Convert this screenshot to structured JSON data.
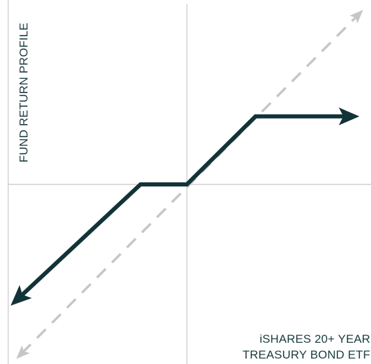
{
  "chart_data": {
    "type": "line",
    "title": "",
    "ylabel": "FUND RETURN PROFILE",
    "xlabel_lines": [
      "iSHARES 20+ YEAR",
      "TREASURY BOND ETF"
    ],
    "grid": false,
    "xlim": [
      -1,
      1
    ],
    "ylim": [
      -1,
      1
    ],
    "series": [
      {
        "color": "#123338",
        "style": "solid",
        "arrows": "both-ends",
        "x": [
          -0.95,
          -0.25,
          0,
          0.37,
          0.93
        ],
        "y": [
          -0.66,
          0,
          0,
          0.37,
          0.37
        ]
      },
      {
        "color": "#c6c6c6",
        "style": "dashed",
        "arrows": "both-ends",
        "x": [
          -0.92,
          0.95
        ],
        "y": [
          -0.95,
          0.95
        ]
      }
    ]
  }
}
